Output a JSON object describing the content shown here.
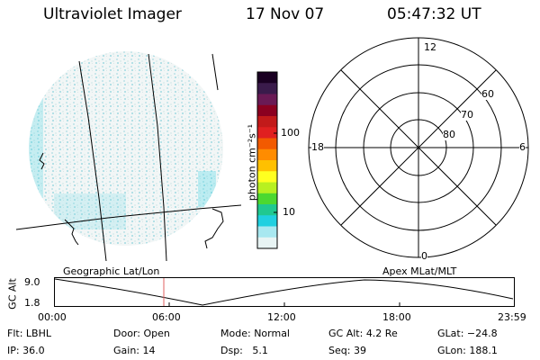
{
  "header": {
    "title": "Ultraviolet Imager",
    "date": "17 Nov 07",
    "time": "05:47:32 UT"
  },
  "colorbar": {
    "unit": "photon cm⁻²s⁻¹",
    "ticks": [
      "100",
      "10"
    ],
    "colors": [
      "#1a0022",
      "#3a1b4b",
      "#6a1a55",
      "#8b0020",
      "#c21a1a",
      "#e02020",
      "#f25a00",
      "#ff8c00",
      "#ffc000",
      "#ffff20",
      "#b8f020",
      "#4cd830",
      "#20c890",
      "#20d0e0",
      "#a8e8f0",
      "#e8f4f4"
    ]
  },
  "polar_plot": {
    "mlt_labels": [
      "12",
      "18",
      "6",
      "0"
    ],
    "mlat_labels": [
      "60",
      "70",
      "80"
    ]
  },
  "timeline": {
    "left_label": "Geographic Lat/Lon",
    "right_label": "Apex MLat/MLT",
    "y_axis_label": "GC Alt",
    "y_top": "9.0",
    "y_bottom": "1.8",
    "x_ticks": [
      "00:00",
      "06:00",
      "12:00",
      "18:00",
      "23:59"
    ]
  },
  "status": {
    "row1": [
      {
        "key": "Flt:",
        "value": "LBHL"
      },
      {
        "key": "Door:",
        "value": "Open"
      },
      {
        "key": "Mode:",
        "value": "Normal"
      },
      {
        "key": "GC Alt:",
        "value": "4.2 Re"
      },
      {
        "key": "GLat:",
        "value": "−24.8"
      }
    ],
    "row2": [
      {
        "key": "IP:",
        "value": "36.0"
      },
      {
        "key": "Gain:",
        "value": "14"
      },
      {
        "key": "Dsp:",
        "value": "5.1"
      },
      {
        "key": "Seq:",
        "value": "39"
      },
      {
        "key": "GLon:",
        "value": "188.1"
      }
    ]
  }
}
